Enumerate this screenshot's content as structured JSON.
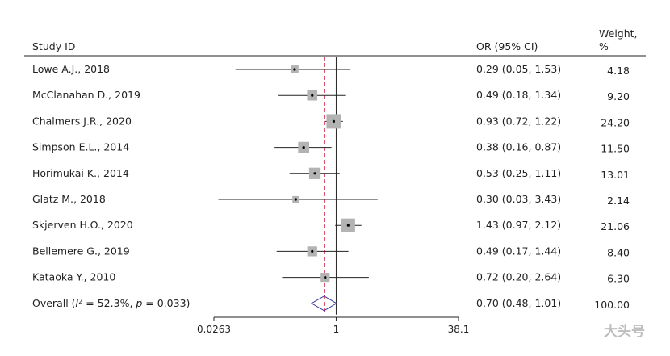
{
  "chart_data": {
    "type": "forest",
    "header": {
      "study": "Study ID",
      "or": "OR (95% CI)",
      "weight_line1": "Weight,",
      "weight_line2": "%"
    },
    "xscale": "log",
    "xlim": [
      0.0263,
      38.1
    ],
    "xticks": [
      {
        "value": 0.0263,
        "label": "0.0263"
      },
      {
        "value": 1,
        "label": "1"
      },
      {
        "value": 38.1,
        "label": "38.1"
      }
    ],
    "reference_line": 1,
    "pooled_line": 0.7,
    "studies": [
      {
        "name": "Lowe A.J., 2018",
        "or": 0.29,
        "lo": 0.05,
        "hi": 1.53,
        "ci_text": "0.29 (0.05, 1.53)",
        "weight": 4.18,
        "weight_text": "4.18"
      },
      {
        "name": "McClanahan D., 2019",
        "or": 0.49,
        "lo": 0.18,
        "hi": 1.34,
        "ci_text": "0.49 (0.18, 1.34)",
        "weight": 9.2,
        "weight_text": "9.20"
      },
      {
        "name": "Chalmers J.R., 2020",
        "or": 0.93,
        "lo": 0.72,
        "hi": 1.22,
        "ci_text": "0.93 (0.72, 1.22)",
        "weight": 24.2,
        "weight_text": "24.20"
      },
      {
        "name": "Simpson E.L., 2014",
        "or": 0.38,
        "lo": 0.16,
        "hi": 0.87,
        "ci_text": "0.38 (0.16, 0.87)",
        "weight": 11.5,
        "weight_text": "11.50"
      },
      {
        "name": "Horimukai K., 2014",
        "or": 0.53,
        "lo": 0.25,
        "hi": 1.11,
        "ci_text": "0.53 (0.25, 1.11)",
        "weight": 13.01,
        "weight_text": "13.01"
      },
      {
        "name": "Glatz M., 2018",
        "or": 0.3,
        "lo": 0.03,
        "hi": 3.43,
        "ci_text": "0.30 (0.03, 3.43)",
        "weight": 2.14,
        "weight_text": "2.14"
      },
      {
        "name": "Skjerven H.O., 2020",
        "or": 1.43,
        "lo": 0.97,
        "hi": 2.12,
        "ci_text": "1.43 (0.97, 2.12)",
        "weight": 21.06,
        "weight_text": "21.06"
      },
      {
        "name": "Bellemere G., 2019",
        "or": 0.49,
        "lo": 0.17,
        "hi": 1.44,
        "ci_text": "0.49 (0.17, 1.44)",
        "weight": 8.4,
        "weight_text": "8.40"
      },
      {
        "name": "Kataoka Y., 2010",
        "or": 0.72,
        "lo": 0.2,
        "hi": 2.64,
        "ci_text": "0.72 (0.20, 2.64)",
        "weight": 6.3,
        "weight_text": "6.30"
      }
    ],
    "overall": {
      "label_prefix": "Overall (",
      "label_i": "I",
      "label_sup": "2",
      "label_mid": " = 52.3%, ",
      "label_p": "p",
      "label_end": " = 0.033)",
      "or": 0.7,
      "lo": 0.48,
      "hi": 1.01,
      "ci_text": "0.70 (0.48, 1.01)",
      "weight_text": "100.00"
    },
    "colors": {
      "square": "#b3b3b3",
      "line": "#222222",
      "pooled_line": "#d7415e",
      "diamond": "#3b3b9b"
    }
  },
  "watermark": "大头号"
}
